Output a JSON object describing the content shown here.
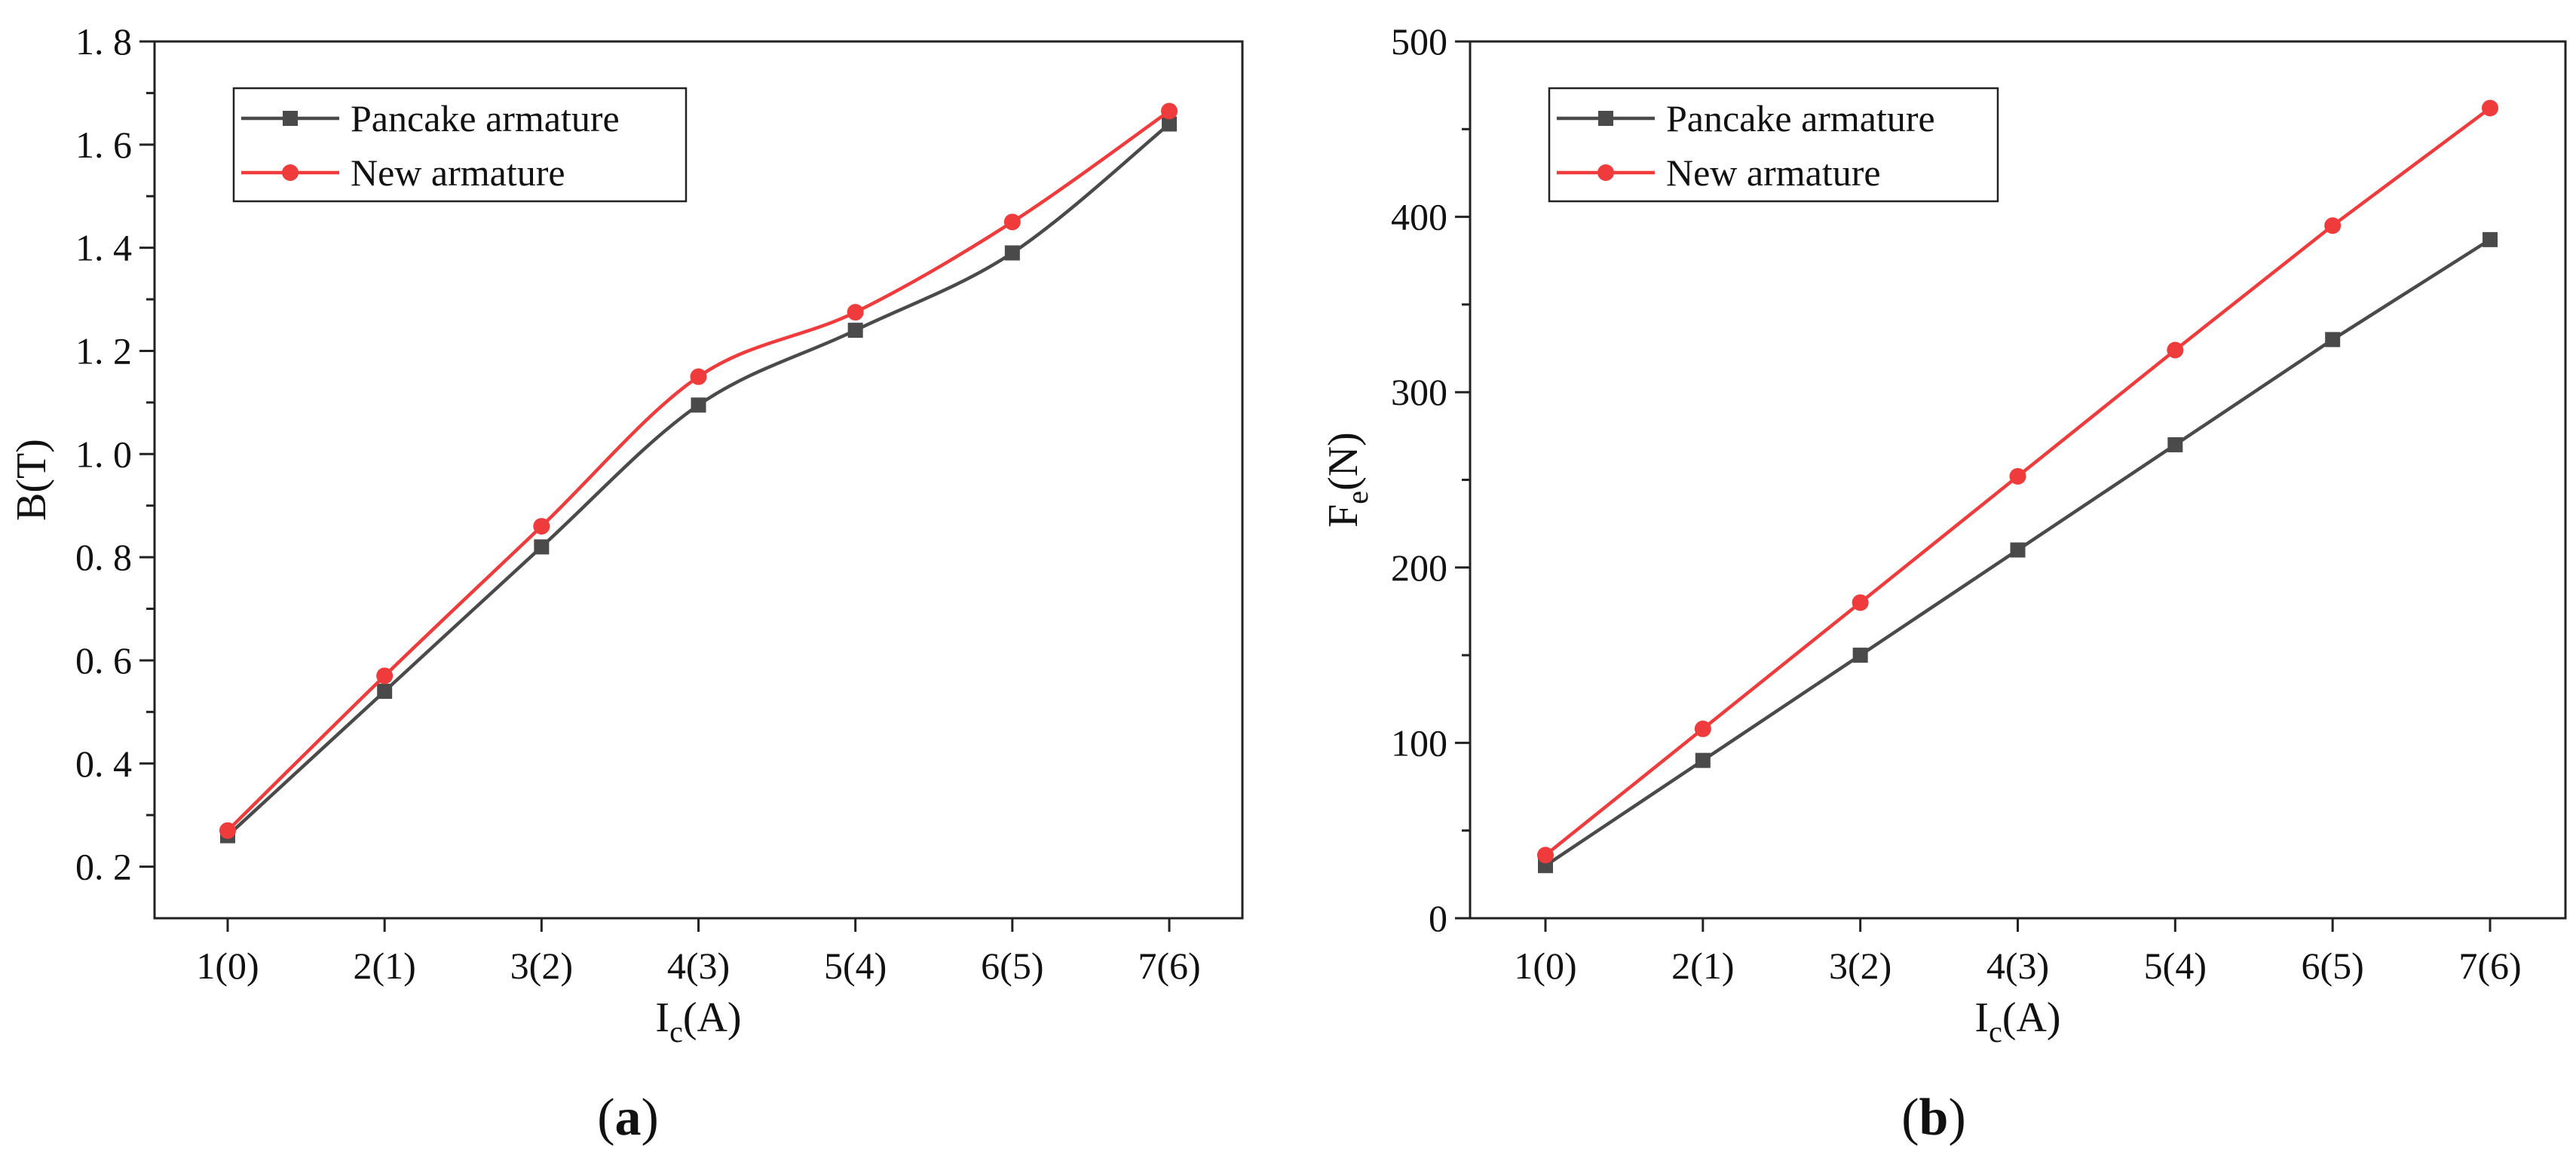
{
  "chart_data": [
    {
      "type": "line",
      "panel_label": "(a)",
      "panel_open": "(",
      "panel_letter": "a",
      "panel_close": ")",
      "categories": [
        "1(0)",
        "2(1)",
        "3(2)",
        "4(3)",
        "5(4)",
        "6(5)",
        "7(6)"
      ],
      "xlabel": "Ic(A)",
      "xlabel_main": "I",
      "xlabel_sub": "c",
      "xlabel_tail": "(A)",
      "ylabel": "B(T)",
      "ylabel_main": "B(T)",
      "ylabel_sub": "",
      "ylabel_tail": "",
      "ylim": [
        0.1,
        1.8
      ],
      "yticks": [
        0.2,
        0.4,
        0.6,
        0.8,
        1.0,
        1.2,
        1.4,
        1.6,
        1.8
      ],
      "ytick_labels": [
        "0. 2",
        "0. 4",
        "0. 6",
        "0. 8",
        "1. 0",
        "1. 2",
        "1. 4",
        "1. 6",
        "1. 8"
      ],
      "smooth": true,
      "legend_position": "top-left",
      "series": [
        {
          "name": "Pancake armature",
          "marker": "square",
          "color": "#4a4a4a",
          "values": [
            0.26,
            0.54,
            0.82,
            1.095,
            1.24,
            1.39,
            1.64
          ]
        },
        {
          "name": "New armature",
          "marker": "circle",
          "color": "#ef3b3b",
          "values": [
            0.27,
            0.57,
            0.86,
            1.15,
            1.275,
            1.45,
            1.665
          ]
        }
      ]
    },
    {
      "type": "line",
      "panel_label": "(b)",
      "panel_open": "(",
      "panel_letter": "b",
      "panel_close": ")",
      "categories": [
        "1(0)",
        "2(1)",
        "3(2)",
        "4(3)",
        "5(4)",
        "6(5)",
        "7(6)"
      ],
      "xlabel": "Ic(A)",
      "xlabel_main": "I",
      "xlabel_sub": "c",
      "xlabel_tail": "(A)",
      "ylabel": "Fe(N)",
      "ylabel_main": "F",
      "ylabel_sub": "e",
      "ylabel_tail": "(N)",
      "ylim": [
        0,
        500
      ],
      "yticks": [
        0,
        100,
        200,
        300,
        400,
        500
      ],
      "ytick_labels": [
        "0",
        "100",
        "200",
        "300",
        "400",
        "500"
      ],
      "smooth": false,
      "legend_position": "top-left",
      "series": [
        {
          "name": "Pancake armature",
          "marker": "square",
          "color": "#4a4a4a",
          "values": [
            30,
            90,
            150,
            210,
            270,
            330,
            387
          ]
        },
        {
          "name": "New armature",
          "marker": "circle",
          "color": "#ef3b3b",
          "values": [
            36,
            108,
            180,
            252,
            324,
            395,
            462
          ]
        }
      ]
    }
  ]
}
